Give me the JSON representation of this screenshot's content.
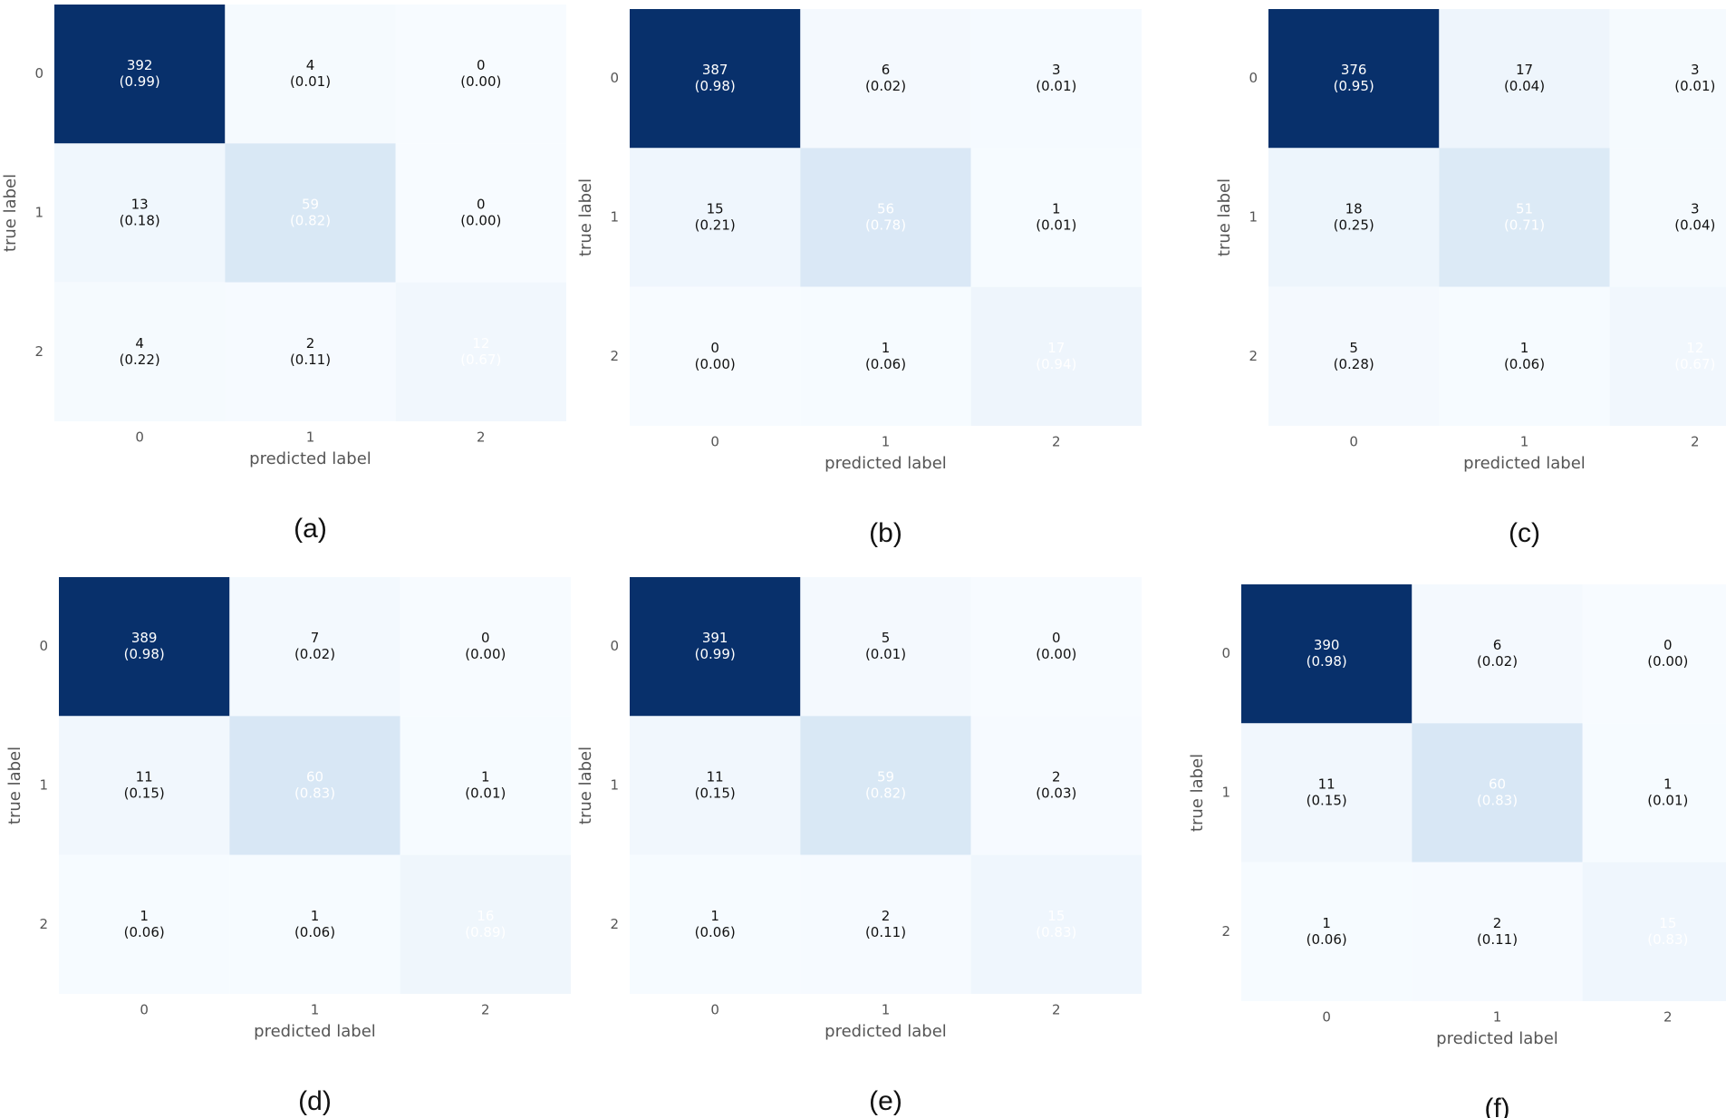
{
  "chart_data": [
    {
      "type": "heatmap",
      "title": "(a)",
      "x_label": "predicted label",
      "y_label": "true label",
      "x_categories": [
        "0",
        "1",
        "2"
      ],
      "y_categories": [
        "0",
        "1",
        "2"
      ],
      "values": [
        [
          392,
          4,
          0
        ],
        [
          13,
          59,
          0
        ],
        [
          4,
          2,
          12
        ]
      ],
      "value_labels": [
        [
          "(0.99)",
          "(0.01)",
          "(0.00)"
        ],
        [
          "(0.18)",
          "(0.82)",
          "(0.00)"
        ],
        [
          "(0.22)",
          "(0.11)",
          "(0.67)"
        ]
      ],
      "colors": [
        "#f7fbff",
        "#deebf7",
        "#c6dbef",
        "#9ecae1",
        "#6baed6",
        "#4292c6",
        "#2171b5",
        "#08519c",
        "#08306b"
      ]
    },
    {
      "type": "heatmap",
      "title": "(b)",
      "x_label": "predicted label",
      "y_label": "true label",
      "x_categories": [
        "0",
        "1",
        "2"
      ],
      "y_categories": [
        "0",
        "1",
        "2"
      ],
      "values": [
        [
          387,
          6,
          3
        ],
        [
          15,
          56,
          1
        ],
        [
          0,
          1,
          17
        ]
      ],
      "value_labels": [
        [
          "(0.98)",
          "(0.02)",
          "(0.01)"
        ],
        [
          "(0.21)",
          "(0.78)",
          "(0.01)"
        ],
        [
          "(0.00)",
          "(0.06)",
          "(0.94)"
        ]
      ],
      "colors": [
        "#f7fbff",
        "#deebf7",
        "#c6dbef",
        "#9ecae1",
        "#6baed6",
        "#4292c6",
        "#2171b5",
        "#08519c",
        "#08306b"
      ]
    },
    {
      "type": "heatmap",
      "title": "(c)",
      "x_label": "predicted label",
      "y_label": "true label",
      "x_categories": [
        "0",
        "1",
        "2"
      ],
      "y_categories": [
        "0",
        "1",
        "2"
      ],
      "values": [
        [
          376,
          17,
          3
        ],
        [
          18,
          51,
          3
        ],
        [
          5,
          1,
          12
        ]
      ],
      "value_labels": [
        [
          "(0.95)",
          "(0.04)",
          "(0.01)"
        ],
        [
          "(0.25)",
          "(0.71)",
          "(0.04)"
        ],
        [
          "(0.28)",
          "(0.06)",
          "(0.67)"
        ]
      ],
      "colors": [
        "#f7fbff",
        "#deebf7",
        "#c6dbef",
        "#9ecae1",
        "#6baed6",
        "#4292c6",
        "#2171b5",
        "#08519c",
        "#08306b"
      ]
    },
    {
      "type": "heatmap",
      "title": "(d)",
      "x_label": "predicted label",
      "y_label": "true label",
      "x_categories": [
        "0",
        "1",
        "2"
      ],
      "y_categories": [
        "0",
        "1",
        "2"
      ],
      "values": [
        [
          389,
          7,
          0
        ],
        [
          11,
          60,
          1
        ],
        [
          1,
          1,
          16
        ]
      ],
      "value_labels": [
        [
          "(0.98)",
          "(0.02)",
          "(0.00)"
        ],
        [
          "(0.15)",
          "(0.83)",
          "(0.01)"
        ],
        [
          "(0.06)",
          "(0.06)",
          "(0.89)"
        ]
      ],
      "colors": [
        "#f7fbff",
        "#deebf7",
        "#c6dbef",
        "#9ecae1",
        "#6baed6",
        "#4292c6",
        "#2171b5",
        "#08519c",
        "#08306b"
      ]
    },
    {
      "type": "heatmap",
      "title": "(e)",
      "x_label": "predicted label",
      "y_label": "true label",
      "x_categories": [
        "0",
        "1",
        "2"
      ],
      "y_categories": [
        "0",
        "1",
        "2"
      ],
      "values": [
        [
          391,
          5,
          0
        ],
        [
          11,
          59,
          2
        ],
        [
          1,
          2,
          15
        ]
      ],
      "value_labels": [
        [
          "(0.99)",
          "(0.01)",
          "(0.00)"
        ],
        [
          "(0.15)",
          "(0.82)",
          "(0.03)"
        ],
        [
          "(0.06)",
          "(0.11)",
          "(0.83)"
        ]
      ],
      "colors": [
        "#f7fbff",
        "#deebf7",
        "#c6dbef",
        "#9ecae1",
        "#6baed6",
        "#4292c6",
        "#2171b5",
        "#08519c",
        "#08306b"
      ]
    },
    {
      "type": "heatmap",
      "title": "(f)",
      "x_label": "predicted label",
      "y_label": "true label",
      "x_categories": [
        "0",
        "1",
        "2"
      ],
      "y_categories": [
        "0",
        "1",
        "2"
      ],
      "values": [
        [
          390,
          6,
          0
        ],
        [
          11,
          60,
          1
        ],
        [
          1,
          2,
          15
        ]
      ],
      "value_labels": [
        [
          "(0.98)",
          "(0.02)",
          "(0.00)"
        ],
        [
          "(0.15)",
          "(0.83)",
          "(0.01)"
        ],
        [
          "(0.06)",
          "(0.11)",
          "(0.83)"
        ]
      ],
      "colors": [
        "#f7fbff",
        "#deebf7",
        "#c6dbef",
        "#9ecae1",
        "#6baed6",
        "#4292c6",
        "#2171b5",
        "#08519c",
        "#08306b"
      ]
    }
  ]
}
